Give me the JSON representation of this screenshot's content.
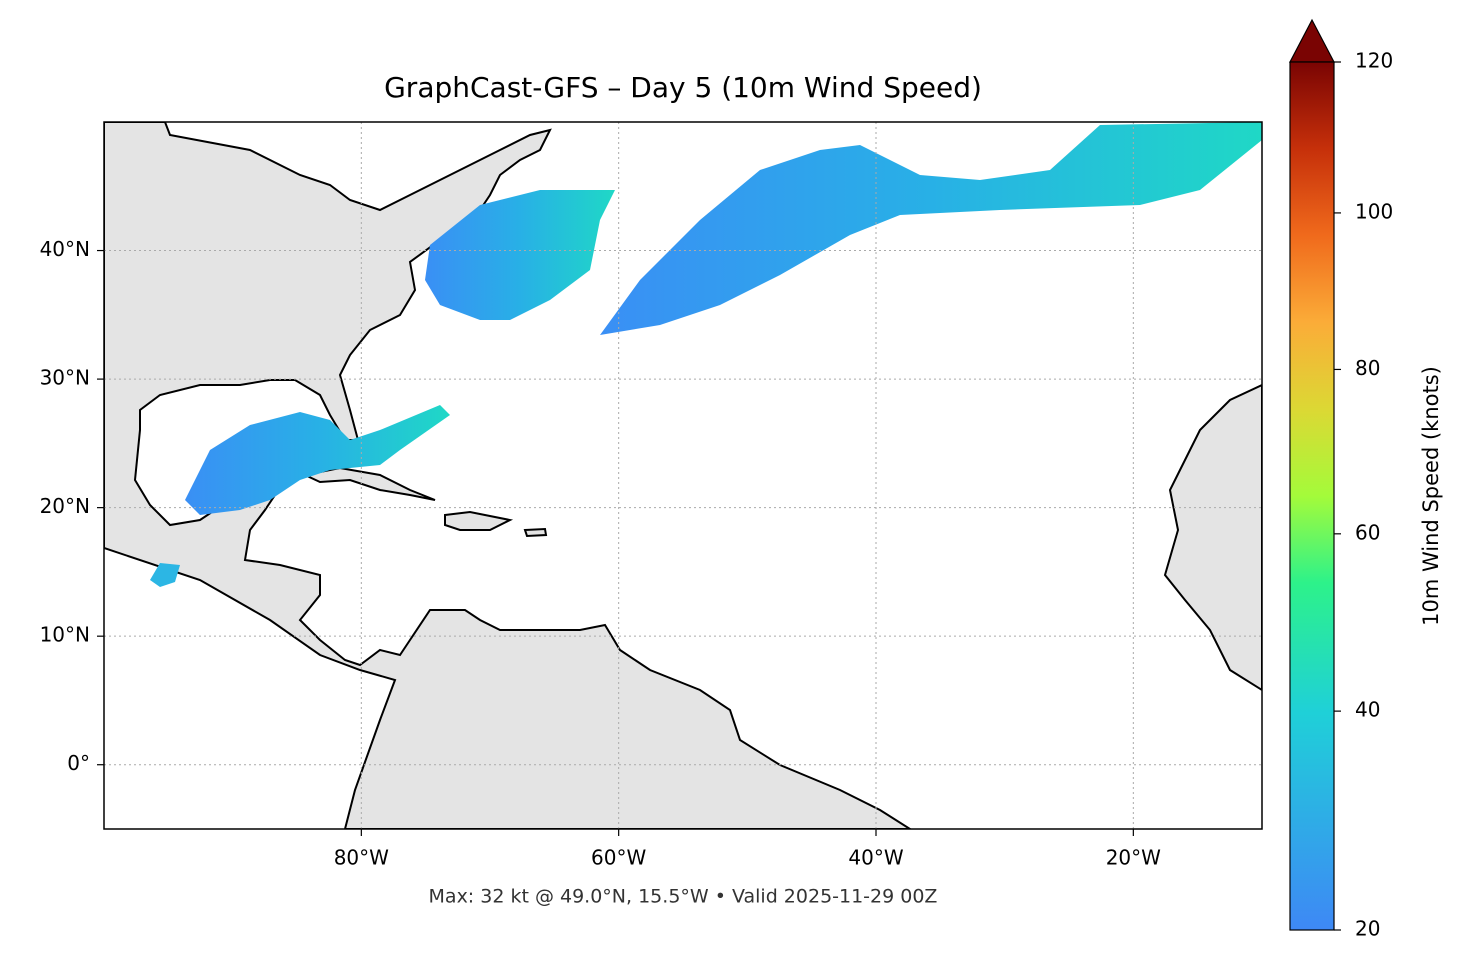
{
  "chart_data": {
    "type": "map",
    "title": "GraphCast-GFS – Day 5 (10m Wind Speed)",
    "footer": "Max: 32 kt @ 49.0°N, 15.5°W • Valid 2025-11-29 00Z",
    "xlim": [
      -100,
      -10
    ],
    "ylim": [
      -5,
      50
    ],
    "xticks": [
      {
        "value": -80,
        "label": "80°W"
      },
      {
        "value": -60,
        "label": "60°W"
      },
      {
        "value": -40,
        "label": "40°W"
      },
      {
        "value": -20,
        "label": "20°W"
      }
    ],
    "yticks": [
      {
        "value": 0,
        "label": "0°"
      },
      {
        "value": 10,
        "label": "10°N"
      },
      {
        "value": 20,
        "label": "20°N"
      },
      {
        "value": 30,
        "label": "30°N"
      },
      {
        "value": 40,
        "label": "40°N"
      }
    ],
    "grid": true,
    "colorbar": {
      "label": "10m Wind Speed (knots)",
      "lim": [
        20,
        120
      ],
      "ticks": [
        20,
        40,
        60,
        80,
        100,
        120
      ]
    }
  }
}
